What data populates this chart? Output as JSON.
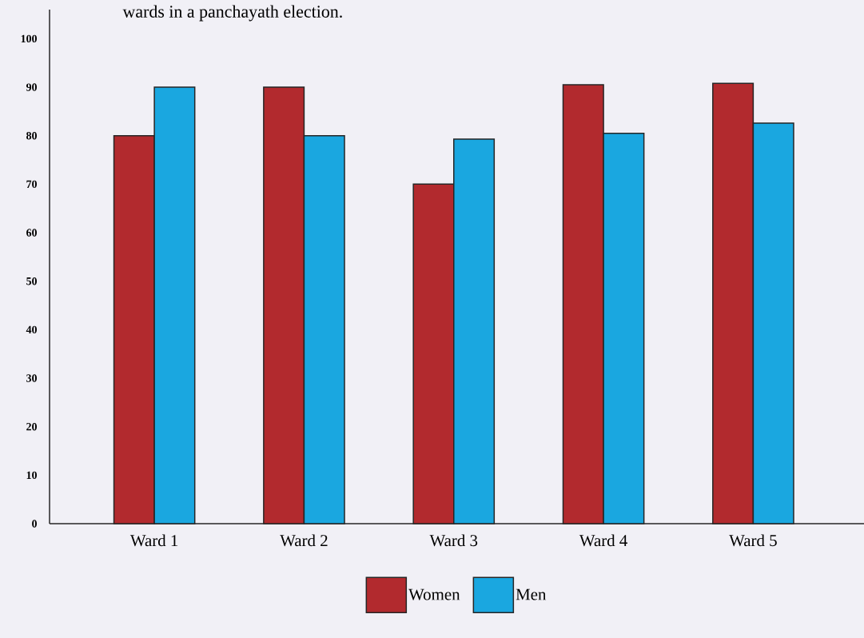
{
  "chart_data": {
    "type": "bar",
    "title": "wards in a panchayath election.",
    "categories": [
      "Ward  1",
      "Ward  2",
      "Ward  3",
      "Ward  4",
      "Ward  5"
    ],
    "series": [
      {
        "name": "Women",
        "color": "#b22a2e",
        "values": [
          80,
          90,
          70,
          90.5,
          90.8
        ]
      },
      {
        "name": "Men",
        "color": "#1aa7e0",
        "values": [
          90,
          80,
          79.3,
          80.5,
          82.6
        ]
      }
    ],
    "ylim": [
      0,
      106
    ],
    "yticks": [
      0,
      10,
      20,
      30,
      40,
      50,
      60,
      70,
      80,
      90,
      100
    ],
    "legend": "bottom"
  }
}
